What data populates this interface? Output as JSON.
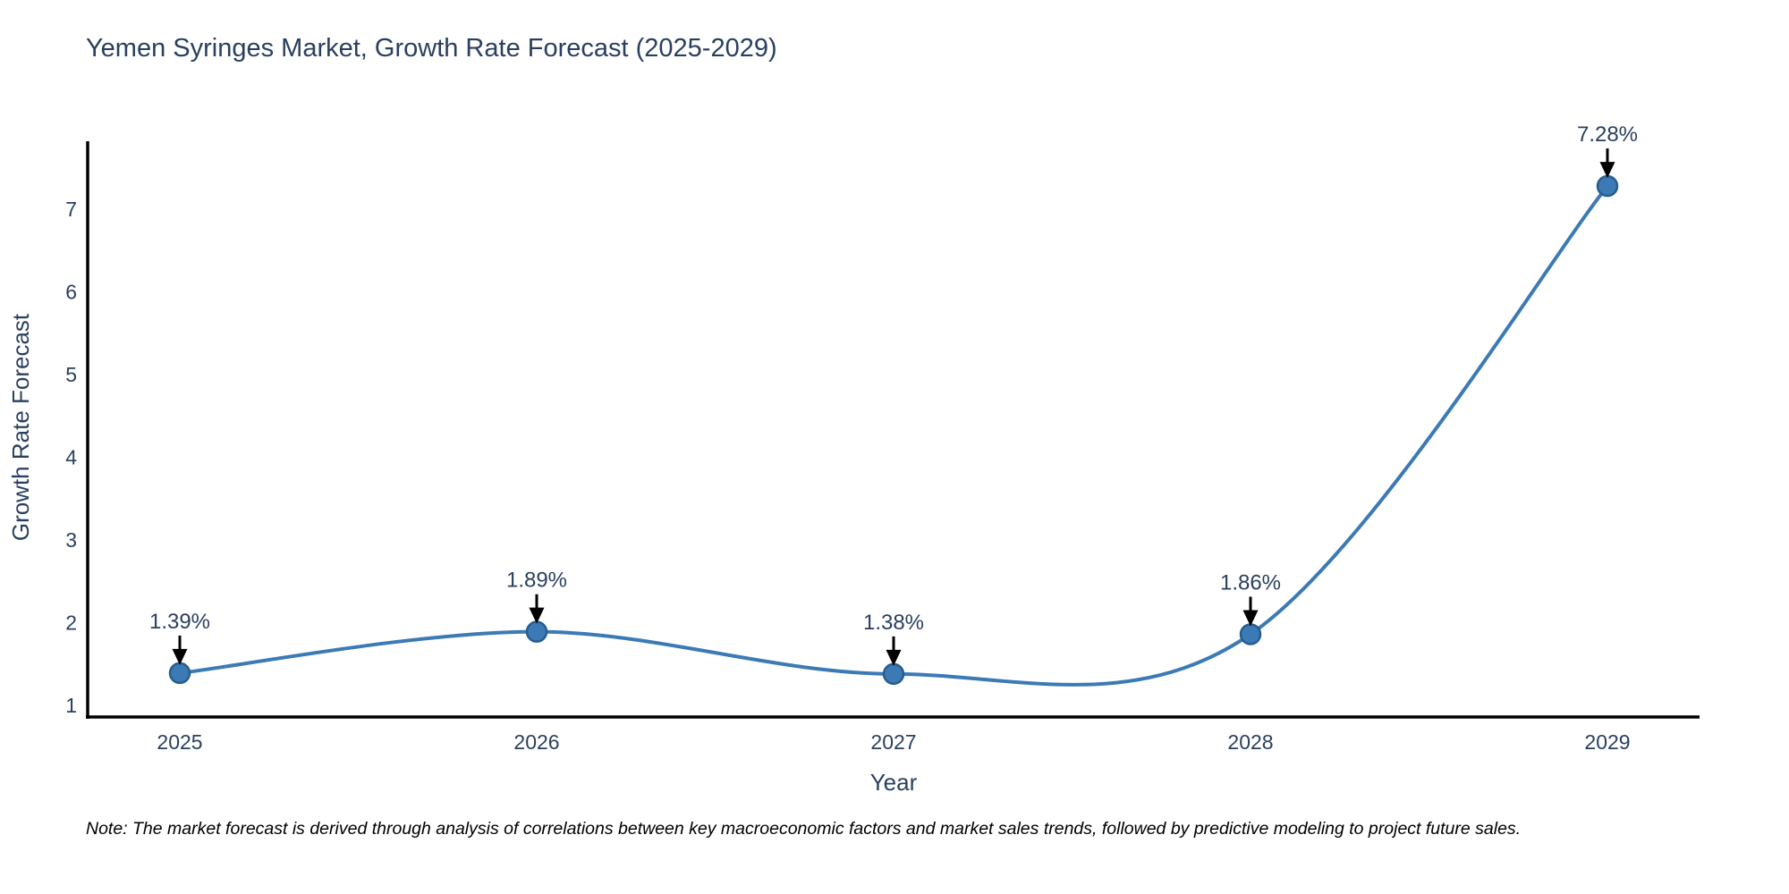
{
  "page": {
    "background": "#ffffff"
  },
  "chart_data": {
    "type": "line",
    "line_shape": "spline",
    "title": "Yemen Syringes Market, Growth Rate Forecast (2025-2029)",
    "xlabel": "Year",
    "ylabel": "Growth Rate Forecast",
    "categories": [
      2025,
      2026,
      2027,
      2028,
      2029
    ],
    "series": [
      {
        "name": "Growth Rate Forecast",
        "values": [
          1.39,
          1.89,
          1.38,
          1.86,
          7.28
        ],
        "labels": [
          "1.39%",
          "1.89%",
          "1.38%",
          "1.86%",
          "7.28%"
        ]
      }
    ],
    "y_ticks": [
      1,
      2,
      3,
      4,
      5,
      6,
      7
    ],
    "ylim": [
      0.84,
      7.8
    ],
    "xlim": [
      2024.74,
      2029.26
    ],
    "grid": false,
    "legend_position": "none",
    "markers": true,
    "annotation_style": "percent label with black down-arrow above each point",
    "colors": {
      "line": "#3c7ab5",
      "marker_fill": "#3c7ab5",
      "marker_edge": "#275d8e",
      "axis": "#000000",
      "tick_text": "#2a3f5f",
      "title_text": "#2a3f5f",
      "annotation_text": "#2a3f5f",
      "arrow": "#000000",
      "note_text": "#000000"
    },
    "note": "Note: The market forecast is derived through analysis of correlations between key macroeconomic factors and market sales trends, followed by predictive modeling to project future sales."
  }
}
